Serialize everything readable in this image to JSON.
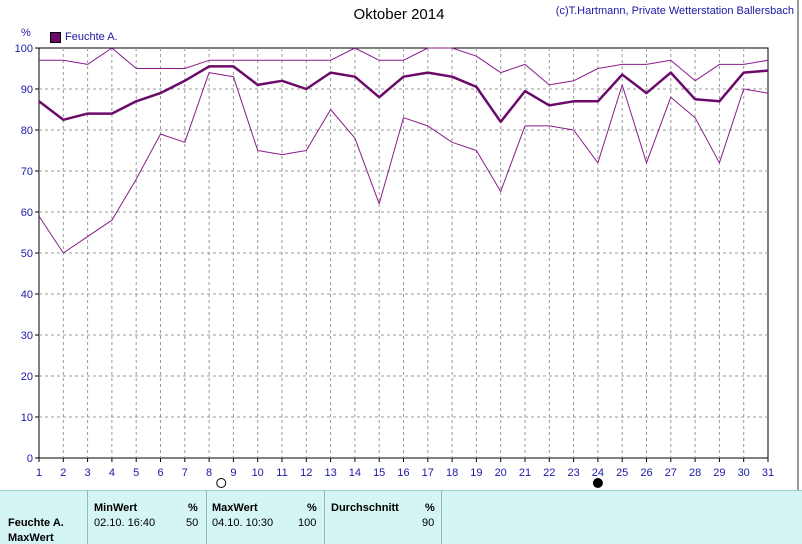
{
  "header": {
    "title": "Oktober 2014",
    "credit": "(c)T.Hartmann, Private Wetterstation Ballersbach"
  },
  "legend": {
    "label": "Feuchte A."
  },
  "chart_data": {
    "type": "line",
    "title": "Oktober 2014",
    "xlabel": "",
    "ylabel": "%",
    "xlim": [
      1,
      31
    ],
    "ylim": [
      0,
      100
    ],
    "y_ticks": [
      0,
      10,
      20,
      30,
      40,
      50,
      60,
      70,
      80,
      90,
      100
    ],
    "x": [
      1,
      2,
      3,
      4,
      5,
      6,
      7,
      8,
      9,
      10,
      11,
      12,
      13,
      14,
      15,
      16,
      17,
      18,
      19,
      20,
      21,
      22,
      23,
      24,
      25,
      26,
      27,
      28,
      29,
      30,
      31
    ],
    "grid": true,
    "legend_position": "top-left",
    "moon_phases": [
      {
        "day": 8.5,
        "phase": "full-moon"
      },
      {
        "day": 24,
        "phase": "new-moon"
      }
    ],
    "series": [
      {
        "name": "Feuchte A.",
        "role": "max",
        "color": "#8a1c8a",
        "values": [
          97,
          97,
          96,
          100,
          95,
          95,
          95,
          97,
          97,
          97,
          97,
          97,
          97,
          100,
          97,
          97,
          100,
          100,
          98,
          94,
          96,
          91,
          92,
          95,
          96,
          96,
          97,
          92,
          96,
          96,
          97
        ]
      },
      {
        "name": "Feuchte A.",
        "role": "avg",
        "color": "#6b0a6b",
        "values": [
          87,
          82.5,
          84,
          84,
          87,
          89,
          92,
          95.5,
          95.5,
          91,
          92,
          90,
          94,
          93,
          88,
          93,
          94,
          93,
          90.5,
          82,
          89.5,
          86,
          87,
          87,
          93.5,
          89,
          94,
          87.5,
          87,
          94,
          94.5
        ]
      },
      {
        "name": "Feuchte A.",
        "role": "min",
        "color": "#8a1c8a",
        "values": [
          59,
          50,
          54,
          58,
          68,
          79,
          77,
          94,
          93,
          75,
          74,
          75,
          85,
          78,
          62,
          83,
          81,
          77,
          75,
          65,
          81,
          81,
          80,
          72,
          91,
          72,
          88,
          83,
          72,
          90,
          89
        ]
      }
    ]
  },
  "stats": {
    "row_label": "Feuchte A.",
    "row_label_2": "MaxWert",
    "min_header": "MinWert",
    "min_unit": "%",
    "min_time": "02.10.  16:40",
    "min_value": "50",
    "max_header": "MaxWert",
    "max_unit": "%",
    "max_time": "04.10.  10:30",
    "max_value": "100",
    "avg_header": "Durchschnitt",
    "avg_unit": "%",
    "avg_value": "90"
  }
}
